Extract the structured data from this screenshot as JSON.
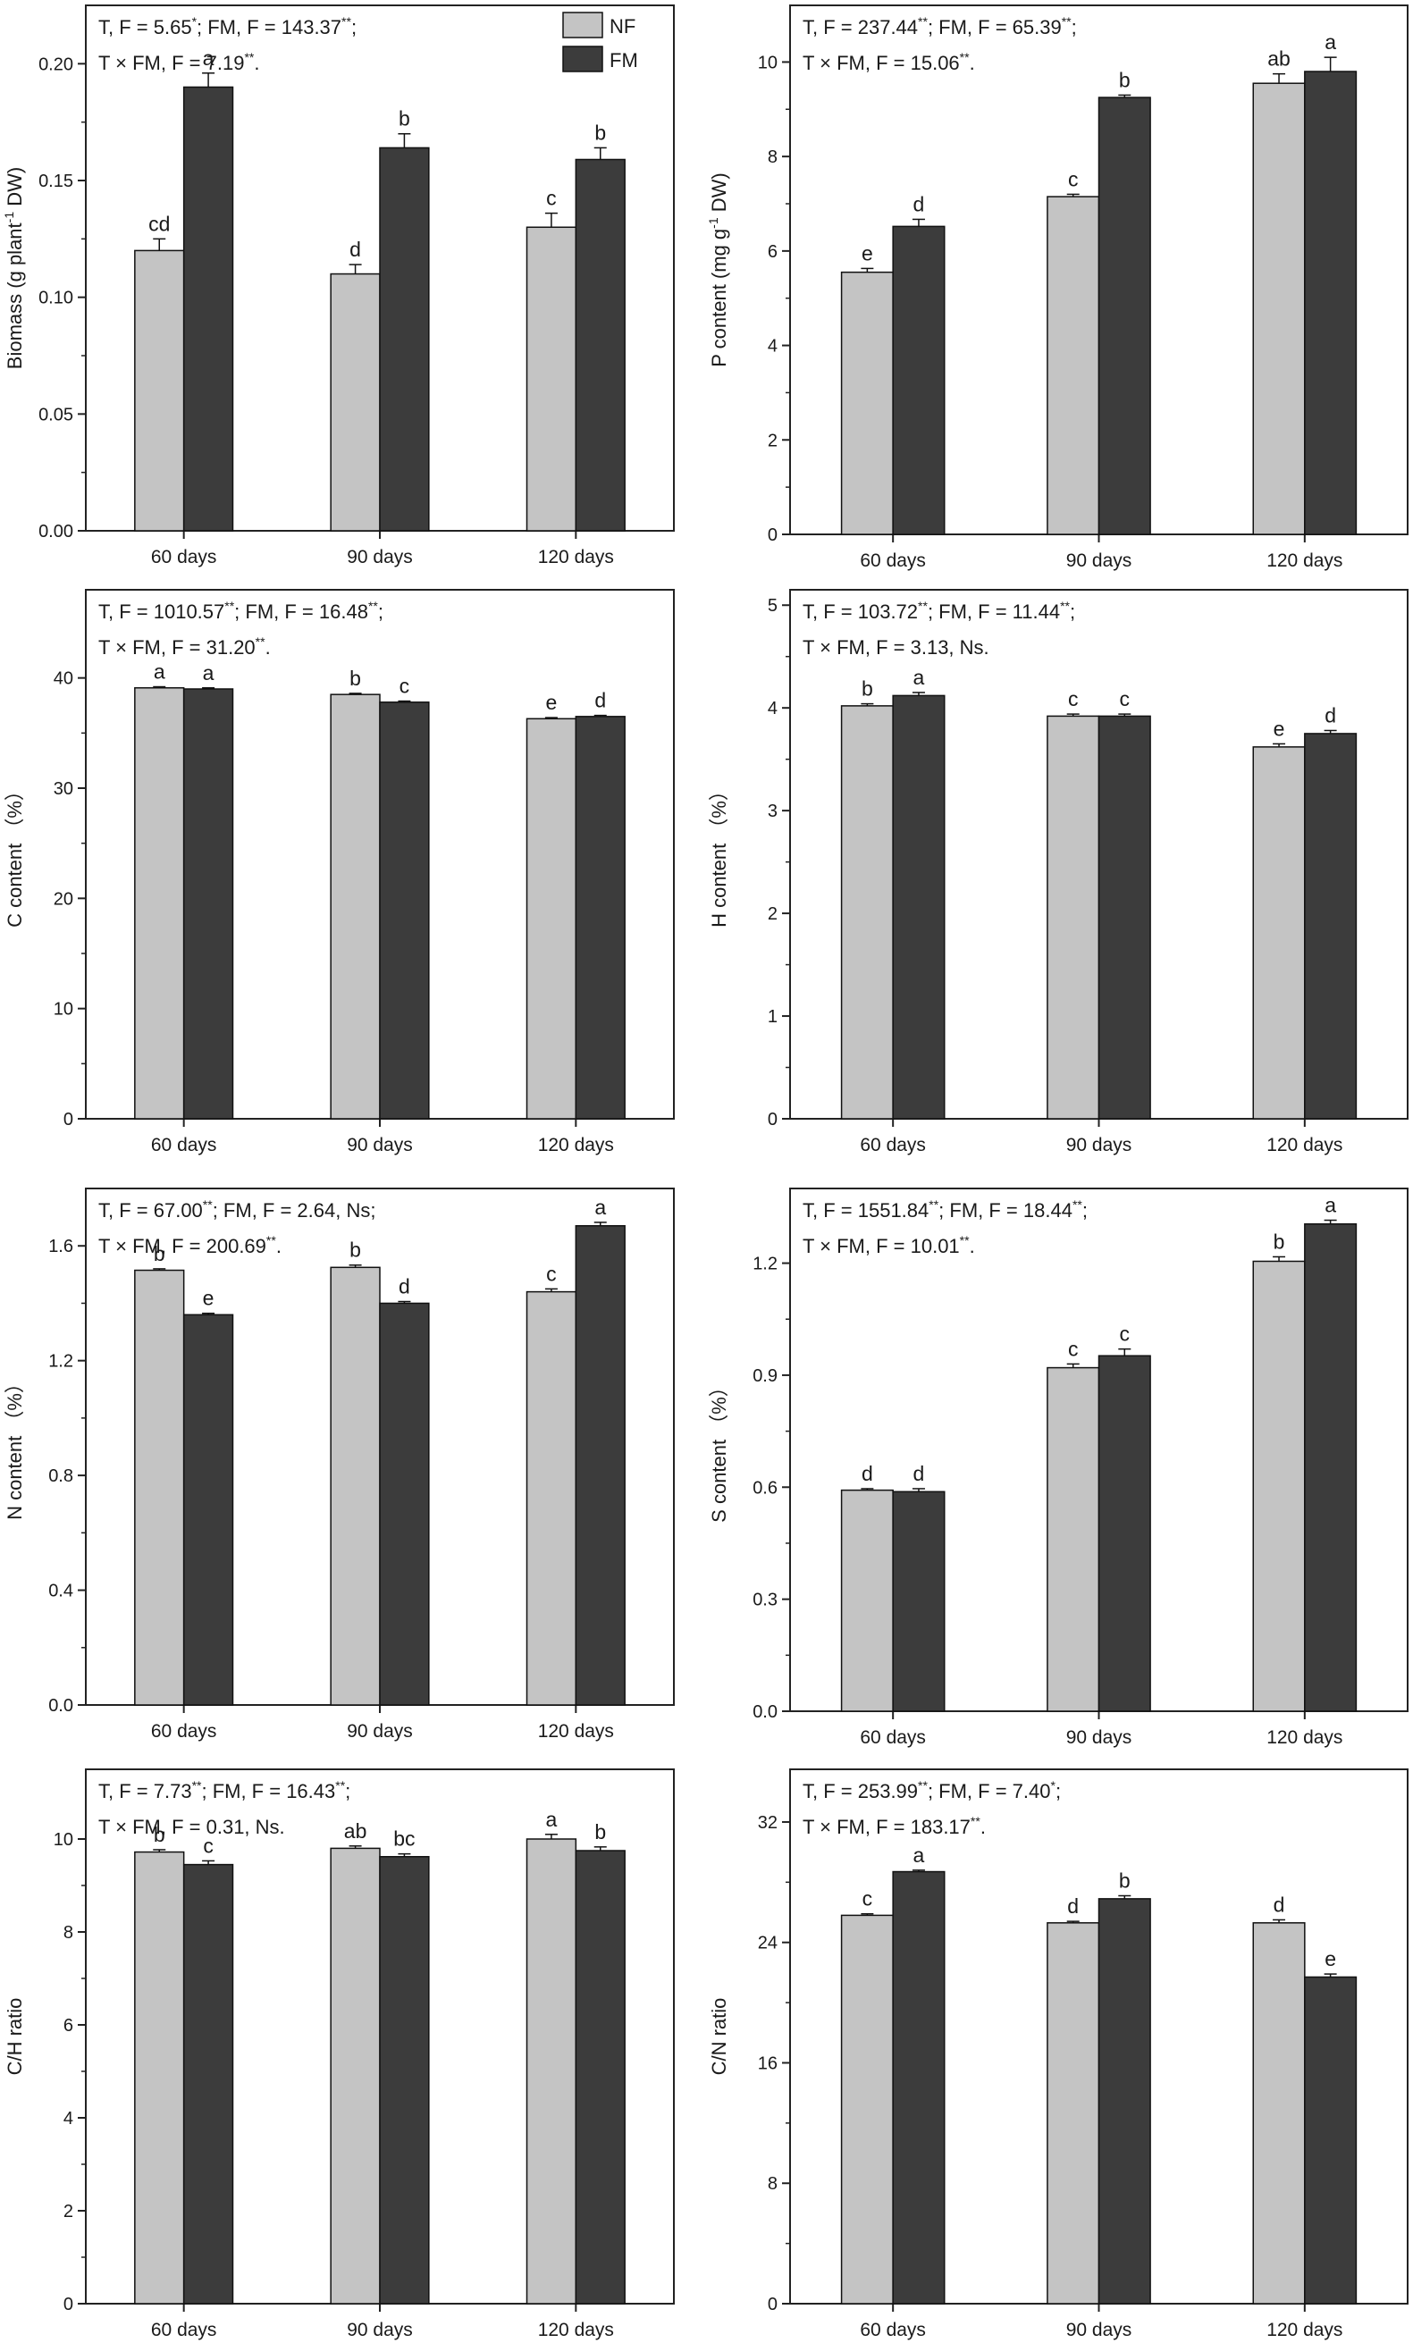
{
  "colors": {
    "NF": "#c4c4c4",
    "FM": "#3c3c3c",
    "frame": "#222222"
  },
  "legend": [
    {
      "label": "NF"
    },
    {
      "label": "FM"
    }
  ],
  "chart_data": [
    {
      "type": "bar",
      "panel": "top-left",
      "categories": [
        "60 days",
        "90 days",
        "120 days"
      ],
      "series": [
        {
          "name": "NF",
          "values": [
            0.12,
            0.11,
            0.13
          ],
          "errors": [
            0.005,
            0.004,
            0.006
          ],
          "letters": [
            "cd",
            "d",
            "c"
          ]
        },
        {
          "name": "FM",
          "values": [
            0.19,
            0.164,
            0.159
          ],
          "errors": [
            0.006,
            0.006,
            0.005
          ],
          "letters": [
            "a",
            "b",
            "b"
          ]
        }
      ],
      "ylabel": {
        "pre": "Biomass (g plant",
        "sup": "-1",
        "post": " DW)"
      },
      "ylim": [
        0,
        0.225
      ],
      "ticks": [
        0,
        0.05,
        0.1,
        0.15,
        0.2
      ],
      "tick_labels": [
        "0.00",
        "0.05",
        "0.10",
        "0.15",
        "0.20"
      ],
      "stats": [
        [
          {
            "t": "T, F = 5.65"
          },
          {
            "t": "*",
            "sup": true
          },
          {
            "t": "; FM, F = 143.37"
          },
          {
            "t": "**",
            "sup": true
          },
          {
            "t": ";"
          }
        ],
        [
          {
            "t": "T × FM, F = 7.19"
          },
          {
            "t": "**",
            "sup": true
          },
          {
            "t": "."
          }
        ]
      ],
      "show_legend": true
    },
    {
      "type": "bar",
      "panel": "top-right",
      "categories": [
        "60 days",
        "90 days",
        "120 days"
      ],
      "series": [
        {
          "name": "NF",
          "values": [
            5.55,
            7.15,
            9.55
          ],
          "errors": [
            0.08,
            0.05,
            0.2
          ],
          "letters": [
            "e",
            "c",
            "ab"
          ]
        },
        {
          "name": "FM",
          "values": [
            6.52,
            9.25,
            9.8
          ],
          "errors": [
            0.15,
            0.05,
            0.3
          ],
          "letters": [
            "d",
            "b",
            "a"
          ]
        }
      ],
      "ylabel": {
        "pre": "P content (mg g",
        "sup": "-1",
        "post": " DW)"
      },
      "ylim": [
        0,
        11.2
      ],
      "ticks": [
        0,
        2,
        4,
        6,
        8,
        10
      ],
      "tick_labels": [
        "0",
        "2",
        "4",
        "6",
        "8",
        "10"
      ],
      "stats": [
        [
          {
            "t": "T, F = 237.44"
          },
          {
            "t": "**",
            "sup": true
          },
          {
            "t": "; FM, F = 65.39"
          },
          {
            "t": "**",
            "sup": true
          },
          {
            "t": ";"
          }
        ],
        [
          {
            "t": "T × FM, F = 15.06"
          },
          {
            "t": "**",
            "sup": true
          },
          {
            "t": "."
          }
        ]
      ],
      "show_legend": false
    },
    {
      "type": "bar",
      "panel": "row2-left",
      "categories": [
        "60 days",
        "90 days",
        "120 days"
      ],
      "series": [
        {
          "name": "NF",
          "values": [
            39.1,
            38.5,
            36.3
          ],
          "errors": [
            0.1,
            0.1,
            0.1
          ],
          "letters": [
            "a",
            "b",
            "e"
          ]
        },
        {
          "name": "FM",
          "values": [
            39.0,
            37.8,
            36.5
          ],
          "errors": [
            0.1,
            0.1,
            0.1
          ],
          "letters": [
            "a",
            "c",
            "d"
          ]
        }
      ],
      "ylabel": {
        "pre": "C content （%）",
        "sup": "",
        "post": ""
      },
      "ylim": [
        0,
        48
      ],
      "ticks": [
        0,
        10,
        20,
        30,
        40
      ],
      "tick_labels": [
        "0",
        "10",
        "20",
        "30",
        "40"
      ],
      "stats": [
        [
          {
            "t": "T, F = 1010.57"
          },
          {
            "t": "**",
            "sup": true
          },
          {
            "t": "; FM, F = 16.48"
          },
          {
            "t": "**",
            "sup": true
          },
          {
            "t": ";"
          }
        ],
        [
          {
            "t": "T × FM, F = 31.20"
          },
          {
            "t": "**",
            "sup": true
          },
          {
            "t": "."
          }
        ]
      ],
      "show_legend": false
    },
    {
      "type": "bar",
      "panel": "row2-right",
      "categories": [
        "60 days",
        "90 days",
        "120 days"
      ],
      "series": [
        {
          "name": "NF",
          "values": [
            4.02,
            3.92,
            3.62
          ],
          "errors": [
            0.02,
            0.02,
            0.03
          ],
          "letters": [
            "b",
            "c",
            "e"
          ]
        },
        {
          "name": "FM",
          "values": [
            4.12,
            3.92,
            3.75
          ],
          "errors": [
            0.03,
            0.02,
            0.03
          ],
          "letters": [
            "a",
            "c",
            "d"
          ]
        }
      ],
      "ylabel": {
        "pre": "H content （%）",
        "sup": "",
        "post": ""
      },
      "ylim": [
        0,
        5.15
      ],
      "ticks": [
        0,
        1,
        2,
        3,
        4,
        5
      ],
      "tick_labels": [
        "0",
        "1",
        "2",
        "3",
        "4",
        "5"
      ],
      "stats": [
        [
          {
            "t": "T, F = 103.72"
          },
          {
            "t": "**",
            "sup": true
          },
          {
            "t": "; FM, F = 11.44"
          },
          {
            "t": "**",
            "sup": true
          },
          {
            "t": ";"
          }
        ],
        [
          {
            "t": "T × FM, F = 3.13, Ns."
          }
        ]
      ],
      "show_legend": false
    },
    {
      "type": "bar",
      "panel": "row3-left",
      "categories": [
        "60 days",
        "90 days",
        "120 days"
      ],
      "series": [
        {
          "name": "NF",
          "values": [
            1.515,
            1.525,
            1.44
          ],
          "errors": [
            0.005,
            0.008,
            0.01
          ],
          "letters": [
            "b",
            "b",
            "c"
          ]
        },
        {
          "name": "FM",
          "values": [
            1.36,
            1.4,
            1.67
          ],
          "errors": [
            0.005,
            0.006,
            0.012
          ],
          "letters": [
            "e",
            "d",
            "a"
          ]
        }
      ],
      "ylabel": {
        "pre": "N content （%）",
        "sup": "",
        "post": ""
      },
      "ylim": [
        0,
        1.8
      ],
      "ticks": [
        0,
        0.4,
        0.8,
        1.2,
        1.6
      ],
      "tick_labels": [
        "0.0",
        "0.4",
        "0.8",
        "1.2",
        "1.6"
      ],
      "stats": [
        [
          {
            "t": "T, F = 67.00"
          },
          {
            "t": "**",
            "sup": true
          },
          {
            "t": "; FM, F = 2.64, Ns;"
          }
        ],
        [
          {
            "t": "T × FM, F = 200.69"
          },
          {
            "t": "**",
            "sup": true
          },
          {
            "t": "."
          }
        ]
      ],
      "show_legend": false
    },
    {
      "type": "bar",
      "panel": "row3-right",
      "categories": [
        "60 days",
        "90 days",
        "120 days"
      ],
      "series": [
        {
          "name": "NF",
          "values": [
            0.592,
            0.92,
            1.205
          ],
          "errors": [
            0.004,
            0.01,
            0.012
          ],
          "letters": [
            "d",
            "c",
            "b"
          ]
        },
        {
          "name": "FM",
          "values": [
            0.588,
            0.952,
            1.305
          ],
          "errors": [
            0.008,
            0.018,
            0.01
          ],
          "letters": [
            "d",
            "c",
            "a"
          ]
        }
      ],
      "ylabel": {
        "pre": "S content （%）",
        "sup": "",
        "post": ""
      },
      "ylim": [
        0,
        1.4
      ],
      "ticks": [
        0,
        0.3,
        0.6,
        0.9,
        1.2
      ],
      "tick_labels": [
        "0.0",
        "0.3",
        "0.6",
        "0.9",
        "1.2"
      ],
      "stats": [
        [
          {
            "t": "T, F = 1551.84"
          },
          {
            "t": "**",
            "sup": true
          },
          {
            "t": "; FM, F = 18.44"
          },
          {
            "t": "**",
            "sup": true
          },
          {
            "t": ";"
          }
        ],
        [
          {
            "t": "T × FM, F = 10.01"
          },
          {
            "t": "**",
            "sup": true
          },
          {
            "t": "."
          }
        ]
      ],
      "show_legend": false
    },
    {
      "type": "bar",
      "panel": "bottom-left",
      "categories": [
        "60 days",
        "90 days",
        "120 days"
      ],
      "series": [
        {
          "name": "NF",
          "values": [
            9.72,
            9.8,
            10.0
          ],
          "errors": [
            0.05,
            0.05,
            0.1
          ],
          "letters": [
            "b",
            "ab",
            "a"
          ]
        },
        {
          "name": "FM",
          "values": [
            9.45,
            9.62,
            9.75
          ],
          "errors": [
            0.08,
            0.06,
            0.08
          ],
          "letters": [
            "c",
            "bc",
            "b"
          ]
        }
      ],
      "ylabel": {
        "pre": "C/H ratio",
        "sup": "",
        "post": ""
      },
      "ylim": [
        0,
        11.5
      ],
      "ticks": [
        0,
        2,
        4,
        6,
        8,
        10
      ],
      "tick_labels": [
        "0",
        "2",
        "4",
        "6",
        "8",
        "10"
      ],
      "stats": [
        [
          {
            "t": "T, F = 7.73"
          },
          {
            "t": "**",
            "sup": true
          },
          {
            "t": "; FM, F = 16.43"
          },
          {
            "t": "**",
            "sup": true
          },
          {
            "t": ";"
          }
        ],
        [
          {
            "t": "T × FM, F = 0.31, Ns."
          }
        ]
      ],
      "show_legend": false
    },
    {
      "type": "bar",
      "panel": "bottom-right",
      "categories": [
        "60 days",
        "90 days",
        "120 days"
      ],
      "series": [
        {
          "name": "NF",
          "values": [
            25.8,
            25.3,
            25.3
          ],
          "errors": [
            0.1,
            0.1,
            0.2
          ],
          "letters": [
            "c",
            "d",
            "d"
          ]
        },
        {
          "name": "FM",
          "values": [
            28.7,
            26.9,
            21.7
          ],
          "errors": [
            0.1,
            0.2,
            0.2
          ],
          "letters": [
            "a",
            "b",
            "e"
          ]
        }
      ],
      "ylabel": {
        "pre": "C/N ratio",
        "sup": "",
        "post": ""
      },
      "ylim": [
        0,
        35.5
      ],
      "ticks": [
        0,
        8,
        16,
        24,
        32
      ],
      "tick_labels": [
        "0",
        "8",
        "16",
        "24",
        "32"
      ],
      "stats": [
        [
          {
            "t": "T, F = 253.99"
          },
          {
            "t": "**",
            "sup": true
          },
          {
            "t": "; FM, F = 7.40"
          },
          {
            "t": "*",
            "sup": true
          },
          {
            "t": ";"
          }
        ],
        [
          {
            "t": "T × FM, F = 183.17"
          },
          {
            "t": "**",
            "sup": true
          },
          {
            "t": "."
          }
        ]
      ],
      "show_legend": false
    }
  ]
}
